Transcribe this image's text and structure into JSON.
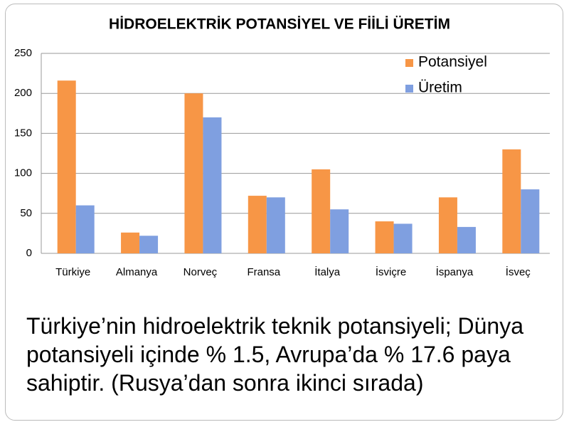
{
  "chart_data": {
    "type": "bar",
    "title": "HİDROELEKTRİK POTANSİYEL VE FİİLİ ÜRETİM",
    "categories": [
      "Türkiye",
      "Almanya",
      "Norveç",
      "Fransa",
      "İtalya",
      "İsviçre",
      "İspanya",
      "İsveç"
    ],
    "series": [
      {
        "name": "Potansiyel",
        "color": "#f79646",
        "values": [
          216,
          26,
          200,
          72,
          105,
          40,
          70,
          130
        ]
      },
      {
        "name": "Üretim",
        "color": "#7f9fe0",
        "values": [
          60,
          22,
          170,
          70,
          55,
          37,
          33,
          80
        ]
      }
    ],
    "ylim": [
      0,
      250
    ],
    "yticks": [
      0,
      50,
      100,
      150,
      200,
      250
    ],
    "grid": true,
    "legend": "top-right"
  },
  "caption": "Türkiye’nin hidroelektrik teknik potansiyeli; Dünya potansiyeli içinde % 1.5, Avrupa’da % 17.6 paya sahiptir. (Rusya’dan sonra ikinci sırada)"
}
